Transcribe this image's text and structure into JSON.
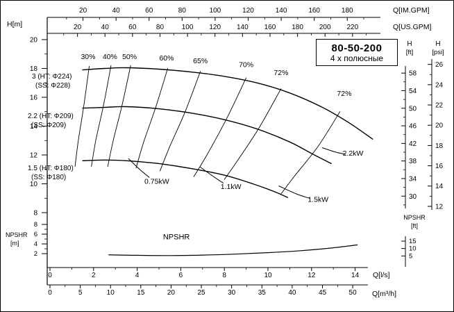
{
  "title_box": {
    "model": "80-50-200",
    "poles_label": "4 х полюсные"
  },
  "axis_labels": {
    "h_m": "H[m]",
    "q_imgpm": "Q[IM.GPM]",
    "q_usgpm": "Q[US.GPM]",
    "q_ls": "Q[l/s]",
    "q_m3h": "Q[m³/h]",
    "h_ft_1": "H",
    "h_ft_2": "[ft]",
    "h_psi_1": "H",
    "h_psi_2": "[psi]",
    "npshr_m_1": "NPSHR",
    "npshr_m_2": "[m]",
    "npshr_ft_1": "NPSHR",
    "npshr_ft_2": "[ft]"
  },
  "axis_ticks": {
    "imgpm": [
      20,
      40,
      60,
      80,
      100,
      120,
      140,
      160,
      180
    ],
    "usgpm": [
      20,
      40,
      60,
      80,
      100,
      120,
      140,
      160,
      180,
      200,
      220
    ],
    "h_m": [
      20,
      18,
      16,
      14,
      12,
      10,
      8
    ],
    "h_ft": [
      58,
      54,
      50,
      46,
      42,
      38,
      34,
      30
    ],
    "h_psi": [
      26,
      24,
      22,
      20,
      18,
      16,
      14,
      12
    ],
    "q_ls": [
      0,
      2,
      4,
      6,
      8,
      10,
      12,
      14
    ],
    "q_m3h": [
      0,
      5,
      10,
      15,
      20,
      25,
      30,
      35,
      40,
      45,
      50
    ],
    "npshr_m": [
      8,
      6,
      4,
      2
    ],
    "npshr_ft": [
      15,
      10,
      5
    ]
  },
  "colors": {
    "line": "#000000",
    "background": "#ffffff"
  },
  "chart_data": {
    "type": "line",
    "title": "80-50-200 4 х полюсные — pump performance curves",
    "x_axes": [
      "Q[IM.GPM]",
      "Q[US.GPM]",
      "Q[l/s]",
      "Q[m³/h]"
    ],
    "y_axes": [
      "H[m]",
      "H[ft]",
      "H[psi]",
      "NPSHR[m]",
      "NPSHR[ft]"
    ],
    "x_range_ls": [
      0,
      14
    ],
    "h_range_m": [
      8,
      20
    ],
    "npshr_range_m": [
      0,
      8
    ],
    "head_curves": [
      {
        "name": "impeller-224",
        "label_line1": "3 (HT: Φ224)",
        "label_line2": "(SS: Φ228)",
        "points_q_ls_h_m": [
          [
            1.5,
            17.9
          ],
          [
            2.5,
            18.0
          ],
          [
            3.5,
            18.05
          ],
          [
            5,
            17.95
          ],
          [
            6.5,
            17.75
          ],
          [
            8,
            17.45
          ],
          [
            9.5,
            17.0
          ],
          [
            11,
            16.3
          ],
          [
            12.5,
            15.3
          ],
          [
            13.7,
            14.25
          ],
          [
            14.8,
            13.1
          ]
        ]
      },
      {
        "name": "impeller-209",
        "label_line1": "2.2 (HT: Φ209)",
        "label_line2": "(SS: Φ209)",
        "points_q_ls_h_m": [
          [
            1.5,
            15.25
          ],
          [
            2.5,
            15.3
          ],
          [
            3.5,
            15.35
          ],
          [
            5,
            15.2
          ],
          [
            6.5,
            14.9
          ],
          [
            8,
            14.45
          ],
          [
            9.5,
            13.8
          ],
          [
            11,
            12.9
          ],
          [
            12,
            12.1
          ],
          [
            12.9,
            11.4
          ]
        ]
      },
      {
        "name": "impeller-180",
        "label_line1": "1.5 (HT: Φ180)",
        "label_line2": "(SS: Φ180)",
        "points_q_ls_h_m": [
          [
            1.5,
            11.6
          ],
          [
            2.5,
            11.65
          ],
          [
            3.5,
            11.6
          ],
          [
            5,
            11.4
          ],
          [
            6.5,
            11.05
          ],
          [
            8,
            10.6
          ],
          [
            9.3,
            10.0
          ],
          [
            10.3,
            9.45
          ],
          [
            10.9,
            9.05
          ]
        ]
      }
    ],
    "efficiency_lines": [
      {
        "label": "30%",
        "label_at": [
          1.75,
          18.65
        ],
        "points": [
          [
            1.8,
            18.15
          ],
          [
            1.55,
            15.4
          ],
          [
            1.3,
            13.0
          ],
          [
            1.15,
            11.2
          ]
        ]
      },
      {
        "label": "40%",
        "label_at": [
          2.75,
          18.65
        ],
        "points": [
          [
            2.8,
            18.2
          ],
          [
            2.45,
            15.4
          ],
          [
            2.1,
            13.0
          ],
          [
            1.9,
            11.2
          ]
        ]
      },
      {
        "label": "50%",
        "label_at": [
          3.65,
          18.65
        ],
        "points": [
          [
            3.7,
            18.2
          ],
          [
            3.3,
            15.4
          ],
          [
            2.9,
            13.0
          ],
          [
            2.65,
            11.2
          ]
        ]
      },
      {
        "label": "60%",
        "label_at": [
          5.35,
          18.55
        ],
        "points": [
          [
            5.4,
            18.0
          ],
          [
            4.85,
            15.3
          ],
          [
            4.3,
            12.9
          ],
          [
            3.95,
            11.1
          ]
        ]
      },
      {
        "label": "65%",
        "label_at": [
          6.9,
          18.35
        ],
        "points": [
          [
            6.9,
            17.8
          ],
          [
            6.2,
            15.0
          ],
          [
            5.5,
            12.6
          ],
          [
            5.05,
            10.9
          ]
        ]
      },
      {
        "label": "70%",
        "label_at": [
          9.0,
          18.1
        ],
        "points": [
          [
            9.0,
            17.35
          ],
          [
            8.1,
            14.5
          ],
          [
            7.2,
            12.0
          ],
          [
            6.6,
            10.5
          ]
        ]
      },
      {
        "label": "72%",
        "label_at": [
          10.6,
          17.55
        ],
        "points": [
          [
            10.6,
            16.6
          ],
          [
            9.6,
            13.9
          ],
          [
            8.6,
            11.6
          ],
          [
            8.0,
            10.3
          ]
        ]
      },
      {
        "label": "72%",
        "label_at": [
          13.5,
          16.1
        ],
        "points": [
          [
            13.3,
            15.0
          ],
          [
            12.3,
            12.6
          ],
          [
            11.2,
            10.5
          ],
          [
            10.6,
            9.3
          ]
        ]
      }
    ],
    "power_lines": [
      {
        "label": "0.75kW",
        "label_at": [
          4.9,
          10.0
        ],
        "points": [
          [
            3.6,
            11.75
          ],
          [
            4.15,
            10.95
          ],
          [
            4.55,
            10.45
          ]
        ]
      },
      {
        "label": "1.1kW",
        "label_at": [
          8.3,
          9.65
        ],
        "points": [
          [
            6.9,
            11.15
          ],
          [
            7.5,
            10.5
          ],
          [
            7.95,
            10.05
          ]
        ]
      },
      {
        "label": "1.5kW",
        "label_at": [
          12.3,
          8.75
        ],
        "points": [
          [
            10.5,
            9.85
          ],
          [
            11.3,
            9.3
          ],
          [
            11.9,
            9.0
          ]
        ]
      },
      {
        "label": "2.2kW",
        "label_at": [
          13.9,
          11.95
        ],
        "points": [
          [
            12.5,
            12.5
          ],
          [
            13.1,
            12.2
          ],
          [
            13.55,
            12.05
          ]
        ]
      }
    ],
    "npshr_curve": {
      "label": "NPSHR",
      "label_at": [
        5.8,
        4.9
      ],
      "points_q_ls_npshr_m": [
        [
          2.7,
          1.75
        ],
        [
          4,
          1.65
        ],
        [
          5.5,
          1.6
        ],
        [
          7,
          1.7
        ],
        [
          8.5,
          1.9
        ],
        [
          10,
          2.2
        ],
        [
          11.5,
          2.6
        ],
        [
          13,
          3.2
        ],
        [
          14.1,
          3.8
        ]
      ]
    }
  }
}
